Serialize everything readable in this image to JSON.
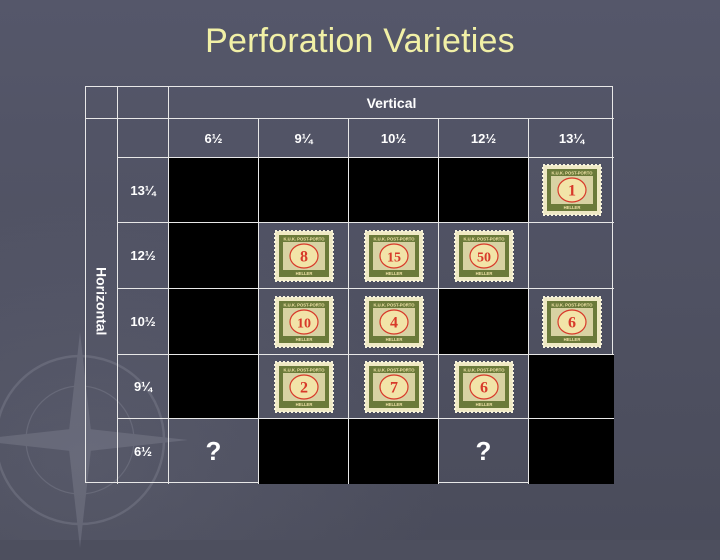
{
  "title": "Perforation Varieties",
  "table": {
    "vertical_label": "Vertical",
    "horizontal_label": "Horizontal",
    "columns": [
      "6½",
      "9¼",
      "10½",
      "12½",
      "13¼"
    ],
    "rows": [
      {
        "label": "13¼",
        "cells": [
          {
            "type": "black"
          },
          {
            "type": "black"
          },
          {
            "type": "black"
          },
          {
            "type": "black"
          },
          {
            "type": "stamp",
            "value": "1"
          }
        ]
      },
      {
        "label": "12½",
        "cells": [
          {
            "type": "black"
          },
          {
            "type": "stamp",
            "value": "8"
          },
          {
            "type": "stamp",
            "value": "15"
          },
          {
            "type": "stamp",
            "value": "50"
          },
          {
            "type": "empty"
          }
        ]
      },
      {
        "label": "10½",
        "cells": [
          {
            "type": "black"
          },
          {
            "type": "stamp",
            "value": "10"
          },
          {
            "type": "stamp",
            "value": "4"
          },
          {
            "type": "black"
          },
          {
            "type": "stamp",
            "value": "6"
          }
        ]
      },
      {
        "label": "9¼",
        "cells": [
          {
            "type": "black"
          },
          {
            "type": "stamp",
            "value": "2"
          },
          {
            "type": "stamp",
            "value": "7"
          },
          {
            "type": "stamp",
            "value": "6"
          },
          {
            "type": "black"
          }
        ]
      },
      {
        "label": "6½",
        "cells": [
          {
            "type": "question",
            "value": "?"
          },
          {
            "type": "black"
          },
          {
            "type": "black"
          },
          {
            "type": "question",
            "value": "?"
          },
          {
            "type": "black"
          }
        ]
      }
    ]
  },
  "stamp_text": {
    "top": "K.U.K. POST-PORTO",
    "bottom": "HELLER"
  },
  "colors": {
    "title": "#f1f0a6",
    "background": "#4d4f5e",
    "stamp_frame": "#6b7a3a",
    "stamp_paper": "#d8d2a3",
    "stamp_numeral": "#d8392a"
  }
}
